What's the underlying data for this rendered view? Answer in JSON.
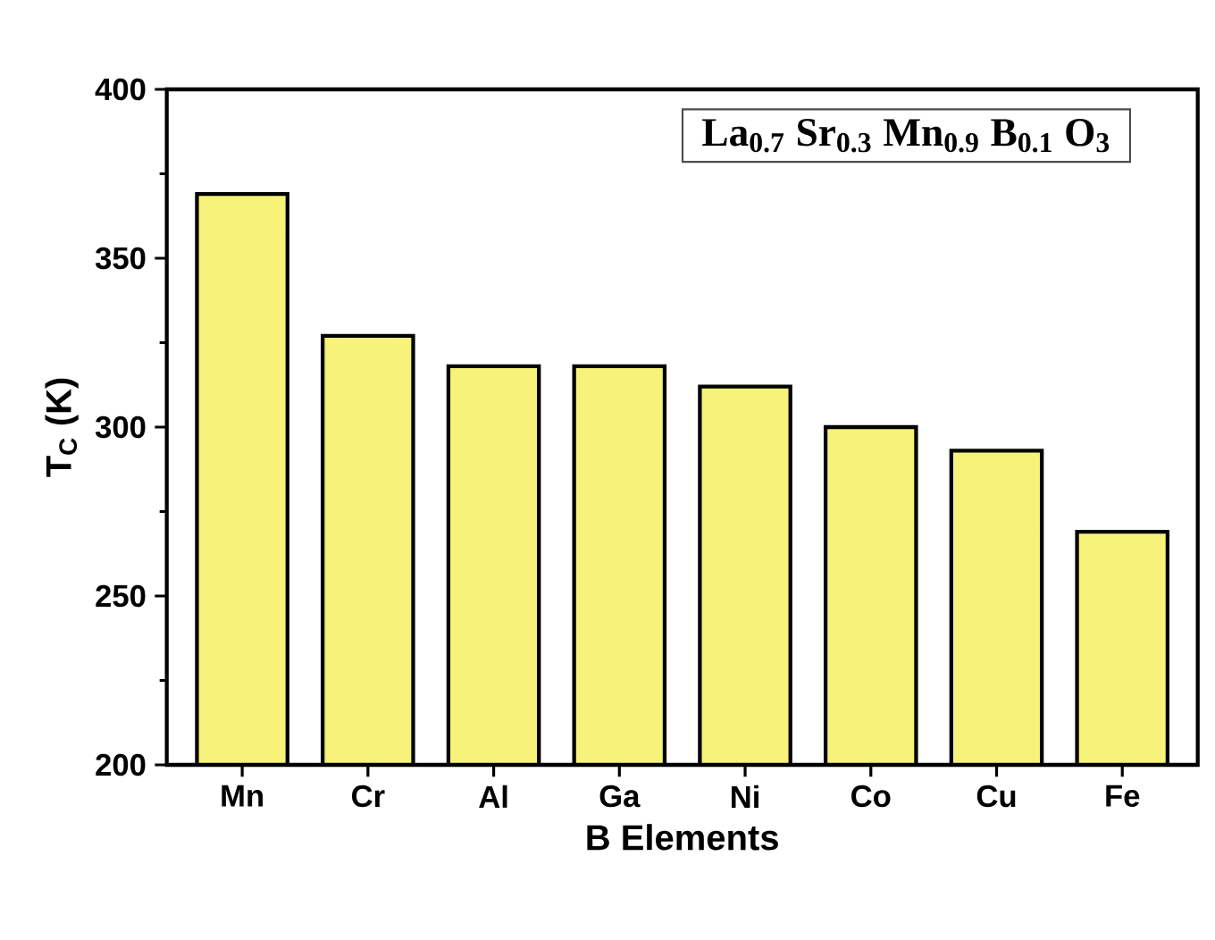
{
  "chart_data": {
    "type": "bar",
    "categories": [
      "Mn",
      "Cr",
      "Al",
      "Ga",
      "Ni",
      "Co",
      "Cu",
      "Fe"
    ],
    "values": [
      369,
      327,
      318,
      318,
      312,
      300,
      293,
      269
    ],
    "color": "#f7f27a",
    "xlabel": "B Elements",
    "ylabel": "T$_{C}$ (K)",
    "ylim": [
      200,
      400
    ],
    "yticks": [
      200,
      250,
      300,
      350,
      400
    ],
    "annotations": [
      "La$_{0.7}$ Sr$_{0.3}$ Mn$_{0.9}$ B$_{0.1}$ O$_{3}$"
    ]
  }
}
